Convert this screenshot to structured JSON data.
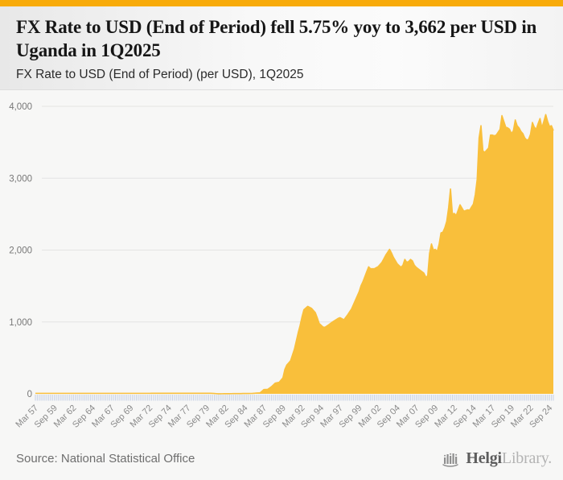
{
  "page": {
    "title": "FX Rate to USD (End of Period) fell 5.75% yoy to 3,662 per USD in Uganda in 1Q2025",
    "subtitle": "FX Rate to USD (End of Period) (per USD), 1Q2025",
    "source": "Source: National Statistical Office",
    "logo": {
      "bold": "Helgi",
      "light": "Library."
    }
  },
  "colors": {
    "topbar": "#F8AB0A",
    "area_fill": "#F9BF3B",
    "gridline": "#E4E4E3",
    "quarter_tick": "#C9D3E6",
    "axis_label": "#8A8A8A",
    "y_label": "#777777"
  },
  "chart_data": {
    "type": "area",
    "title": "FX Rate to USD (End of Period) (per USD), 1Q2025",
    "country": "Uganda",
    "unit": "UGX per USD",
    "frequency": "quarterly",
    "x_start": "Mar 1957",
    "x_end": "Mar 2025",
    "n_points": 273,
    "latest_value": 3662,
    "yoy_change_pct": -5.75,
    "ylim": [
      0,
      4000
    ],
    "ytick_labels": [
      "0",
      "1,000",
      "2,000",
      "3,000",
      "4,000"
    ],
    "grid": "horizontal-only",
    "legend": "none",
    "xtick_every_n_quarters": 10,
    "xtick_labels": [
      "Mar 57",
      "Sep 59",
      "Mar 62",
      "Sep 64",
      "Mar 67",
      "Sep 69",
      "Mar 72",
      "Sep 74",
      "Mar 77",
      "Sep 79",
      "Mar 82",
      "Sep 84",
      "Mar 87",
      "Sep 89",
      "Mar 92",
      "Sep 94",
      "Mar 97",
      "Sep 99",
      "Mar 02",
      "Sep 04",
      "Mar 07",
      "Sep 09",
      "Mar 12",
      "Sep 14",
      "Mar 17",
      "Sep 19",
      "Mar 22",
      "Sep 24"
    ],
    "anchors_note": "Sparse anchor points [quarter_index_from_Mar1957, period, value]; intermediate quarters are linear-interpolated, as read off the chart.",
    "anchors": [
      [
        0,
        "Mar 57",
        7
      ],
      [
        56,
        "Mar 71",
        7
      ],
      [
        92,
        "Mar 80",
        8
      ],
      [
        96,
        "Mar 81",
        1
      ],
      [
        108,
        "Mar 84",
        4
      ],
      [
        114,
        "Sep 85",
        6
      ],
      [
        118,
        "Sep 86",
        14
      ],
      [
        120,
        "Mar 87",
        60
      ],
      [
        122,
        "Sep 87",
        63
      ],
      [
        124,
        "Mar 88",
        100
      ],
      [
        126,
        "Sep 88",
        150
      ],
      [
        128,
        "Mar 89",
        160
      ],
      [
        130,
        "Sep 89",
        223
      ],
      [
        131,
        "Dec 89",
        340
      ],
      [
        132,
        "Mar 90",
        400
      ],
      [
        134,
        "Sep 90",
        460
      ],
      [
        136,
        "Mar 91",
        620
      ],
      [
        138,
        "Sep 91",
        850
      ],
      [
        139,
        "Dec 91",
        950
      ],
      [
        140,
        "Mar 92",
        1070
      ],
      [
        141,
        "Jun 92",
        1170
      ],
      [
        143,
        "Dec 92",
        1217
      ],
      [
        145,
        "Jun 93",
        1190
      ],
      [
        147,
        "Dec 93",
        1130
      ],
      [
        148,
        "Mar 94",
        1060
      ],
      [
        149,
        "Jun 94",
        980
      ],
      [
        151,
        "Dec 94",
        930
      ],
      [
        152,
        "Mar 95",
        925
      ],
      [
        154,
        "Sep 95",
        960
      ],
      [
        156,
        "Mar 96",
        1000
      ],
      [
        159,
        "Dec 96",
        1050
      ],
      [
        160,
        "Mar 97",
        1060
      ],
      [
        162,
        "Sep 97",
        1030
      ],
      [
        164,
        "Mar 98",
        1100
      ],
      [
        166,
        "Sep 98",
        1180
      ],
      [
        167,
        "Dec 98",
        1240
      ],
      [
        168,
        "Mar 99",
        1300
      ],
      [
        170,
        "Sep 99",
        1420
      ],
      [
        171,
        "Dec 99",
        1505
      ],
      [
        172,
        "Mar 00",
        1560
      ],
      [
        174,
        "Sep 00",
        1700
      ],
      [
        175,
        "Dec 00",
        1767
      ],
      [
        176,
        "Mar 01",
        1740
      ],
      [
        178,
        "Sep 01",
        1740
      ],
      [
        180,
        "Mar 02",
        1770
      ],
      [
        182,
        "Sep 02",
        1830
      ],
      [
        184,
        "Mar 03",
        1930
      ],
      [
        186,
        "Sep 03",
        2010
      ],
      [
        187,
        "Dec 03",
        1960
      ],
      [
        188,
        "Mar 04",
        1900
      ],
      [
        190,
        "Sep 04",
        1810
      ],
      [
        192,
        "Mar 05",
        1760
      ],
      [
        193,
        "Jun 05",
        1790
      ],
      [
        194,
        "Sep 05",
        1870
      ],
      [
        195,
        "Dec 05",
        1830
      ],
      [
        196,
        "Mar 06",
        1840
      ],
      [
        197,
        "Jun 06",
        1870
      ],
      [
        198,
        "Sep 06",
        1850
      ],
      [
        199,
        "Dec 06",
        1790
      ],
      [
        200,
        "Mar 07",
        1760
      ],
      [
        202,
        "Sep 07",
        1720
      ],
      [
        204,
        "Mar 08",
        1680
      ],
      [
        205,
        "Jun 08",
        1625
      ],
      [
        206,
        "Sep 08",
        1640
      ],
      [
        207,
        "Dec 08",
        1955
      ],
      [
        208,
        "Mar 09",
        2085
      ],
      [
        209,
        "Jun 09",
        2000
      ],
      [
        210,
        "Sep 09",
        2010
      ],
      [
        211,
        "Dec 09",
        1980
      ],
      [
        212,
        "Mar 10",
        2080
      ],
      [
        213,
        "Jun 10",
        2240
      ],
      [
        214,
        "Sep 10",
        2250
      ],
      [
        215,
        "Dec 10",
        2310
      ],
      [
        216,
        "Mar 11",
        2400
      ],
      [
        217,
        "Jun 11",
        2590
      ],
      [
        218,
        "Sep 11",
        2850
      ],
      [
        219,
        "Dec 11",
        2500
      ],
      [
        220,
        "Mar 12",
        2510
      ],
      [
        221,
        "Jun 12",
        2480
      ],
      [
        223,
        "Dec 12",
        2630
      ],
      [
        225,
        "Jun 13",
        2540
      ],
      [
        227,
        "Dec 13",
        2560
      ],
      [
        228,
        "Mar 14",
        2554
      ],
      [
        230,
        "Sep 14",
        2640
      ],
      [
        231,
        "Dec 14",
        2770
      ],
      [
        232,
        "Mar 15",
        2985
      ],
      [
        233,
        "Jun 15",
        3560
      ],
      [
        234,
        "Sep 15",
        3730
      ],
      [
        235,
        "Dec 15",
        3380
      ],
      [
        236,
        "Mar 16",
        3360
      ],
      [
        237,
        "Jun 16",
        3390
      ],
      [
        238,
        "Sep 16",
        3420
      ],
      [
        239,
        "Dec 16",
        3600
      ],
      [
        240,
        "Mar 17",
        3600
      ],
      [
        241,
        "Jun 17",
        3590
      ],
      [
        242,
        "Sep 17",
        3600
      ],
      [
        243,
        "Dec 17",
        3640
      ],
      [
        244,
        "Mar 18",
        3680
      ],
      [
        245,
        "Jun 18",
        3870
      ],
      [
        246,
        "Sep 18",
        3790
      ],
      [
        247,
        "Dec 18",
        3710
      ],
      [
        248,
        "Mar 19",
        3700
      ],
      [
        249,
        "Jun 19",
        3680
      ],
      [
        250,
        "Sep 19",
        3620
      ],
      [
        251,
        "Dec 19",
        3660
      ],
      [
        252,
        "Mar 20",
        3810
      ],
      [
        253,
        "Jun 20",
        3730
      ],
      [
        254,
        "Sep 20",
        3700
      ],
      [
        255,
        "Dec 20",
        3650
      ],
      [
        256,
        "Mar 21",
        3620
      ],
      [
        257,
        "Jun 21",
        3560
      ],
      [
        258,
        "Sep 21",
        3530
      ],
      [
        259,
        "Dec 21",
        3540
      ],
      [
        260,
        "Mar 22",
        3610
      ],
      [
        261,
        "Jun 22",
        3775
      ],
      [
        262,
        "Sep 22",
        3710
      ],
      [
        263,
        "Dec 22",
        3680
      ],
      [
        264,
        "Mar 23",
        3760
      ],
      [
        265,
        "Jun 23",
        3830
      ],
      [
        266,
        "Sep 23",
        3700
      ],
      [
        267,
        "Dec 23",
        3790
      ],
      [
        268,
        "Mar 24",
        3885
      ],
      [
        269,
        "Jun 24",
        3790
      ],
      [
        270,
        "Sep 24",
        3720
      ],
      [
        271,
        "Dec 24",
        3730
      ],
      [
        272,
        "Mar 25",
        3662
      ]
    ]
  }
}
